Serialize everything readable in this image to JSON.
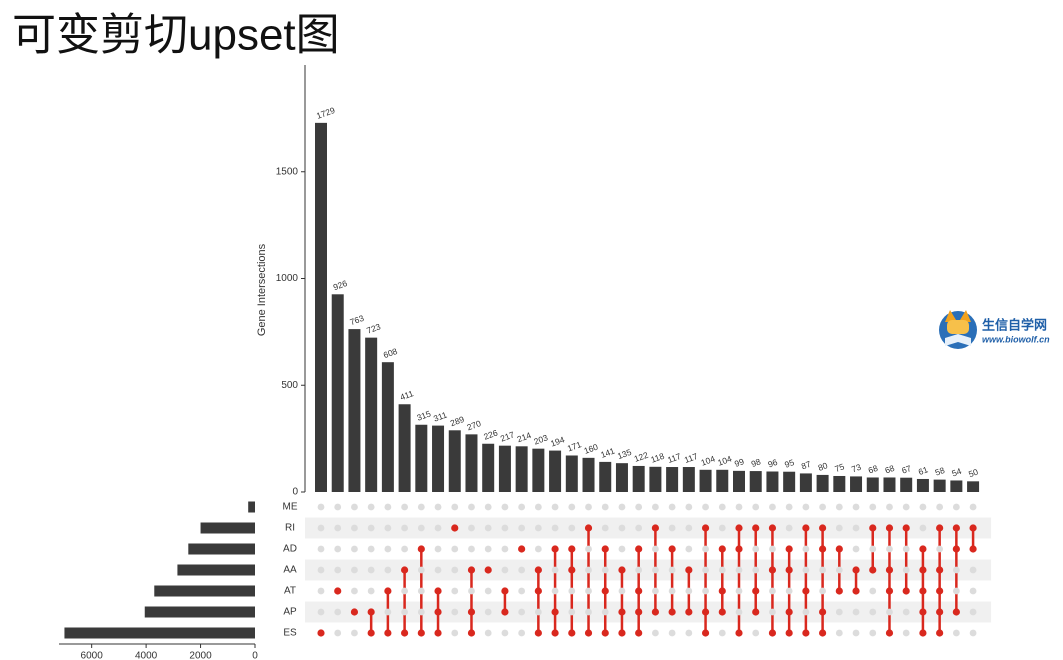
{
  "header": {
    "title": "可变剪切upset图"
  },
  "logo": {
    "name": "生信自学网",
    "url": "www.biowolf.cn"
  },
  "chart_data": {
    "type": "upset",
    "y_label": "Gene Intersections",
    "ylim": [
      0,
      2000
    ],
    "yticks": [
      0,
      500,
      1000,
      1500
    ],
    "bar_color": "#3a3a3a",
    "dot_color": "#d9281e",
    "values": [
      1729,
      926,
      763,
      723,
      608,
      411,
      315,
      311,
      289,
      270,
      226,
      217,
      214,
      203,
      194,
      171,
      160,
      141,
      135,
      122,
      118,
      117,
      117,
      104,
      104,
      99,
      98,
      96,
      95,
      87,
      80,
      75,
      73,
      68,
      68,
      67,
      61,
      58,
      54,
      50
    ],
    "intersections": [
      [
        "ES"
      ],
      [
        "AT"
      ],
      [
        "AP"
      ],
      [
        "AP",
        "ES"
      ],
      [
        "AT",
        "ES"
      ],
      [
        "AA",
        "ES"
      ],
      [
        "AD",
        "ES"
      ],
      [
        "AT",
        "AP",
        "ES"
      ],
      [
        "RI"
      ],
      [
        "AA",
        "AP",
        "ES"
      ],
      [
        "AA"
      ],
      [
        "AT",
        "AP"
      ],
      [
        "AD"
      ],
      [
        "AA",
        "AT",
        "ES"
      ],
      [
        "AD",
        "AP",
        "ES"
      ],
      [
        "AD",
        "AA",
        "ES"
      ],
      [
        "RI",
        "ES"
      ],
      [
        "AD",
        "AT",
        "ES"
      ],
      [
        "AA",
        "AP",
        "ES"
      ],
      [
        "AD",
        "AT",
        "AP",
        "ES"
      ],
      [
        "RI",
        "AP"
      ],
      [
        "AD",
        "AP"
      ],
      [
        "AA",
        "AP"
      ],
      [
        "RI",
        "AP",
        "ES"
      ],
      [
        "AD",
        "AT",
        "AP"
      ],
      [
        "RI",
        "AD",
        "ES"
      ],
      [
        "RI",
        "AT",
        "AP"
      ],
      [
        "RI",
        "AA",
        "ES"
      ],
      [
        "AD",
        "AA",
        "AP",
        "ES"
      ],
      [
        "RI",
        "AT",
        "ES"
      ],
      [
        "RI",
        "AD",
        "AP",
        "ES"
      ],
      [
        "AD",
        "AT"
      ],
      [
        "AA",
        "AT"
      ],
      [
        "RI",
        "AA"
      ],
      [
        "RI",
        "AA",
        "AT",
        "ES"
      ],
      [
        "RI",
        "AT"
      ],
      [
        "AD",
        "AA",
        "AT",
        "AP",
        "ES"
      ],
      [
        "RI",
        "AA",
        "AT",
        "AP",
        "ES"
      ],
      [
        "RI",
        "AD",
        "AP"
      ],
      [
        "RI",
        "AD"
      ]
    ],
    "sets": {
      "names": [
        "ME",
        "RI",
        "AD",
        "AA",
        "AT",
        "AP",
        "ES"
      ],
      "values": [
        250,
        2000,
        2450,
        2850,
        3700,
        4050,
        7000
      ],
      "xlim": [
        0,
        7200
      ],
      "xticks": [
        0,
        2000,
        4000,
        6000
      ]
    }
  }
}
